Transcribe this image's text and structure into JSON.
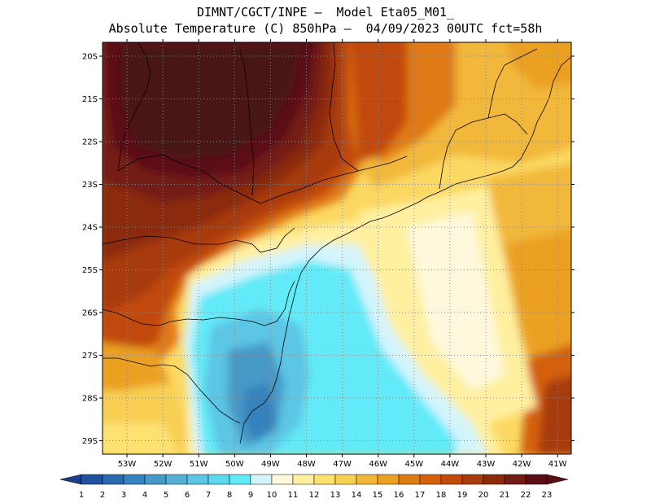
{
  "header": {
    "line1": "DIMNT/CGCT/INPE –  Model Eta05_M01_",
    "line2": "Absolute Temperature (C) 850hPa –  04/09/2023 00UTC fct=58h"
  },
  "map": {
    "lat_labels": [
      "20S",
      "21S",
      "22S",
      "23S",
      "24S",
      "25S",
      "26S",
      "27S",
      "28S",
      "29S"
    ],
    "lon_labels": [
      "53W",
      "52W",
      "51W",
      "50W",
      "49W",
      "48W",
      "47W",
      "46W",
      "45W",
      "44W",
      "43W",
      "42W",
      "41W"
    ]
  },
  "colorbar": {
    "labels": [
      "1",
      "2",
      "3",
      "4",
      "5",
      "6",
      "7",
      "8",
      "9",
      "10",
      "11",
      "12",
      "13",
      "14",
      "15",
      "16",
      "17",
      "18",
      "19",
      "20",
      "21",
      "22",
      "23"
    ],
    "colors": [
      "#1c3c8c",
      "#2152a0",
      "#2a69b0",
      "#3682bc",
      "#4799c8",
      "#56b0d8",
      "#5cc6e4",
      "#5dd8ee",
      "#62eaf8",
      "#d4f4fc",
      "#fff8dc",
      "#fff0a0",
      "#fde272",
      "#f8cf52",
      "#f2b83a",
      "#eba020",
      "#e07a12",
      "#d4600c",
      "#c24a0a",
      "#a83a0c",
      "#8c2a0c",
      "#741c14",
      "#5c0e16"
    ]
  }
}
